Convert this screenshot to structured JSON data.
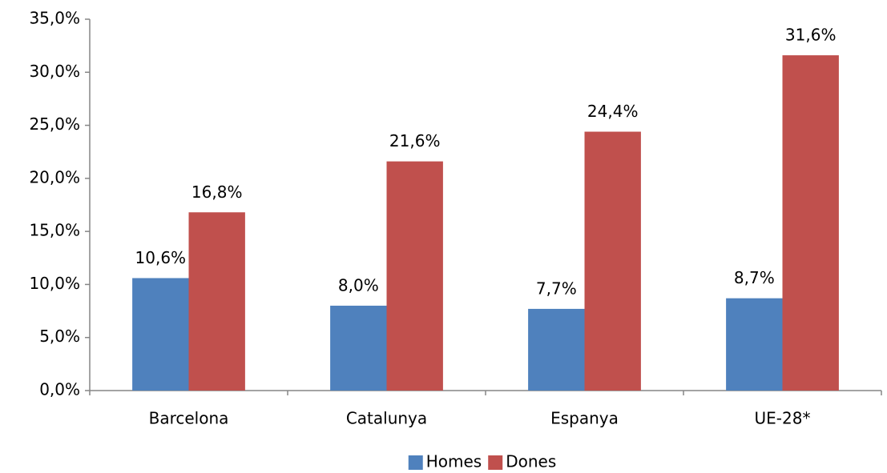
{
  "chart_data": {
    "type": "bar",
    "categories": [
      "Barcelona",
      "Catalunya",
      "Espanya",
      "UE-28*"
    ],
    "series": [
      {
        "name": "Homes",
        "color": "#4f81bd",
        "values": [
          10.6,
          8.0,
          7.7,
          8.7
        ],
        "value_labels": [
          "10,6%",
          "8,0%",
          "7,7%",
          "8,7%"
        ]
      },
      {
        "name": "Dones",
        "color": "#c0504d",
        "values": [
          16.8,
          21.6,
          24.4,
          31.6
        ],
        "value_labels": [
          "16,8%",
          "21,6%",
          "24,4%",
          "31,6%"
        ]
      }
    ],
    "ylim": [
      0,
      35
    ],
    "yticks": [
      {
        "value": 0,
        "label": "0,0%"
      },
      {
        "value": 5,
        "label": "5,0%"
      },
      {
        "value": 10,
        "label": "10,0%"
      },
      {
        "value": 15,
        "label": "15,0%"
      },
      {
        "value": 20,
        "label": "20,0%"
      },
      {
        "value": 25,
        "label": "25,0%"
      },
      {
        "value": 30,
        "label": "30,0%"
      },
      {
        "value": 35,
        "label": "35,0%"
      }
    ],
    "grid": false,
    "legend": "bottom"
  }
}
